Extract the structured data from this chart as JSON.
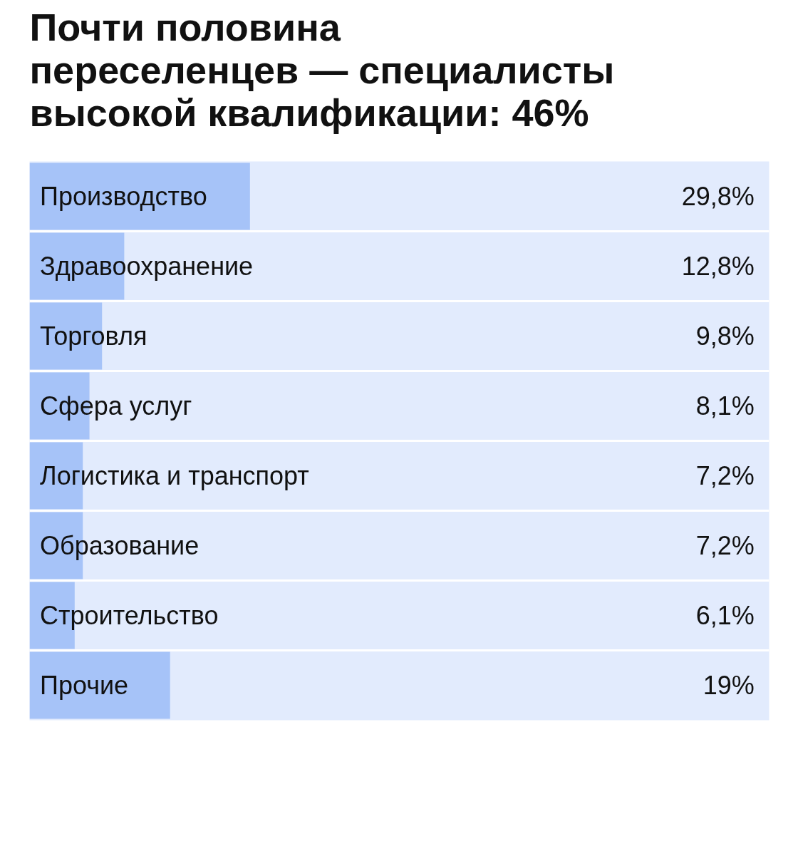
{
  "chart_data": {
    "type": "bar",
    "orientation": "horizontal",
    "title": "Почти половина переселенцев — специалисты высокой квалификации: 46%",
    "categories": [
      "Производство",
      "Здравоохранение",
      "Торговля",
      "Сфера услуг",
      "Логистика и транспорт",
      "Образование",
      "Строительство",
      "Прочие"
    ],
    "values": [
      29.8,
      12.8,
      9.8,
      8.1,
      7.2,
      7.2,
      6.1,
      19
    ],
    "value_labels": [
      "29,8%",
      "12,8%",
      "9,8%",
      "8,1%",
      "7,2%",
      "7,2%",
      "6,1%",
      "19%"
    ],
    "color": "#a6c3f8",
    "xlim": [
      0,
      100
    ],
    "grid": false
  }
}
